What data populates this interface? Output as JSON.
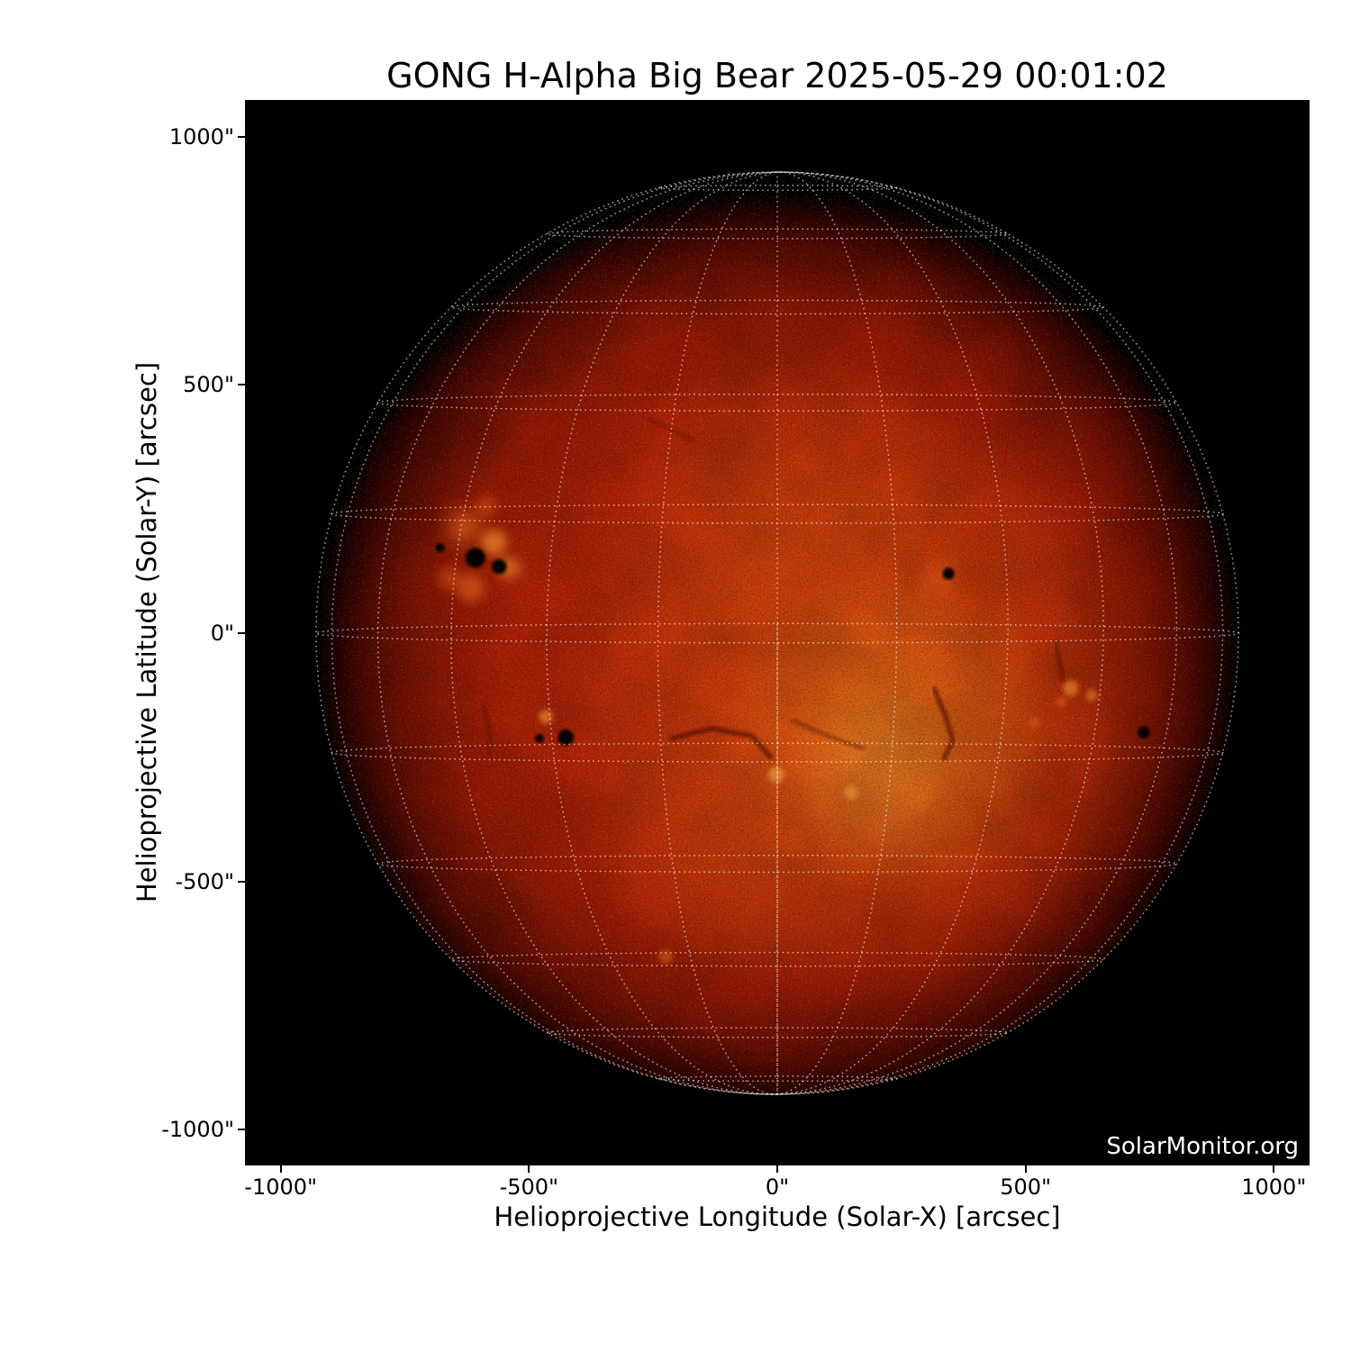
{
  "title": "GONG H-Alpha Big Bear 2025-05-29 00:01:02",
  "watermark": "SolarMonitor.org",
  "chart_data": {
    "type": "heatmap",
    "title": "GONG H-Alpha Big Bear 2025-05-29 00:01:02",
    "xlabel": "Helioprojective Longitude (Solar-X) [arcsec]",
    "ylabel": "Helioprojective Latitude (Solar-Y) [arcsec]",
    "xlim": [
      -1072,
      1072
    ],
    "ylim": [
      -1072,
      1074
    ],
    "background": "#000000",
    "xticks": {
      "values": [
        -1000,
        -500,
        0,
        500,
        1000
      ],
      "labels": [
        "-1000\"",
        "-500\"",
        "0\"",
        "500\"",
        "1000\""
      ]
    },
    "yticks": {
      "values": [
        1000,
        500,
        0,
        -500,
        -1000
      ],
      "labels": [
        "1000\"",
        "500\"",
        "0\"",
        "-500\"",
        "-1000\""
      ]
    },
    "grid": {
      "type": "heliographic",
      "spacing_deg": 15,
      "b0_deg": -1.2,
      "color": "#ffffff",
      "opacity": 0.62,
      "dash": [
        1.6,
        3.9
      ]
    },
    "sun": {
      "center_arcsec": [
        0,
        0
      ],
      "radius_arcsec": 929,
      "base_gradient_stops": [
        [
          0,
          "#c02808"
        ],
        [
          0.4,
          "#b52307"
        ],
        [
          0.6,
          "#a81f06"
        ],
        [
          0.73,
          "#941805"
        ],
        [
          0.83,
          "#701003"
        ],
        [
          0.91,
          "#460702"
        ],
        [
          0.965,
          "#1d0200"
        ],
        [
          1,
          "#000000"
        ]
      ],
      "bright_regions": [
        {
          "x": 170,
          "y": -130,
          "r": 620,
          "color": "#e8650f",
          "opacity": 0.5
        },
        {
          "x": 230,
          "y": -205,
          "r": 340,
          "color": "#ef8a1e",
          "opacity": 0.5
        },
        {
          "x": 205,
          "y": -280,
          "r": 190,
          "color": "#f5a437",
          "opacity": 0.35
        },
        {
          "x": 40,
          "y": 230,
          "r": 380,
          "color": "#d24a0c",
          "opacity": 0.42
        },
        {
          "x": -80,
          "y": -420,
          "r": 300,
          "color": "#dc5210",
          "opacity": 0.3
        }
      ],
      "plages": [
        {
          "x": -631,
          "y": 214,
          "r": 32,
          "color": "#e8661a",
          "opacity": 0.7
        },
        {
          "x": -571,
          "y": 183,
          "r": 26,
          "color": "#f0922e",
          "opacity": 0.7
        },
        {
          "x": -618,
          "y": 92,
          "r": 28,
          "color": "#e8661a",
          "opacity": 0.6
        },
        {
          "x": -540,
          "y": 132,
          "r": 22,
          "color": "#f0922e",
          "opacity": 0.6
        },
        {
          "x": -587,
          "y": 256,
          "r": 20,
          "color": "#dd5512",
          "opacity": 0.55
        },
        {
          "x": -660,
          "y": 111,
          "r": 24,
          "color": "#dd5512",
          "opacity": 0.5
        },
        {
          "x": -466,
          "y": -168,
          "r": 14,
          "color": "#f0922e",
          "opacity": 0.65
        },
        {
          "x": -2,
          "y": -285,
          "r": 16,
          "color": "#f5a847",
          "opacity": 0.6
        },
        {
          "x": 149,
          "y": -321,
          "r": 14,
          "color": "#f5a847",
          "opacity": 0.5
        },
        {
          "x": 328,
          "y": 111,
          "r": 30,
          "color": "#e8661a",
          "opacity": 0.45
        },
        {
          "x": 591,
          "y": -111,
          "r": 16,
          "color": "#f0922e",
          "opacity": 0.6
        },
        {
          "x": 633,
          "y": -125,
          "r": 12,
          "color": "#f0922e",
          "opacity": 0.5
        },
        {
          "x": 573,
          "y": -138,
          "r": 11,
          "color": "#e8661a",
          "opacity": 0.5
        },
        {
          "x": -225,
          "y": -651,
          "r": 14,
          "color": "#e8661a",
          "opacity": 0.5
        },
        {
          "x": 519,
          "y": -180,
          "r": 10,
          "color": "#e8661a",
          "opacity": 0.45
        }
      ],
      "sunspots": [
        {
          "x": -608,
          "y": 152,
          "r": 20
        },
        {
          "x": -560,
          "y": 134,
          "r": 15
        },
        {
          "x": -679,
          "y": 172,
          "r": 9
        },
        {
          "x": 345,
          "y": 120,
          "r": 12
        },
        {
          "x": -479,
          "y": -212,
          "r": 9
        },
        {
          "x": -426,
          "y": -210,
          "r": 16
        },
        {
          "x": 738,
          "y": -200,
          "r": 12
        }
      ],
      "filaments": [
        {
          "width": 5,
          "opacity": 0.75,
          "points": [
            [
              -214,
              -212
            ],
            [
              -132,
              -192
            ],
            [
              -51,
              -207
            ],
            [
              -13,
              -250
            ]
          ]
        },
        {
          "width": 5,
          "opacity": 0.7,
          "points": [
            [
              316,
              -112
            ],
            [
              339,
              -167
            ],
            [
              354,
              -216
            ],
            [
              336,
              -252
            ]
          ]
        },
        {
          "width": 4,
          "opacity": 0.6,
          "points": [
            [
              560,
              -16
            ],
            [
              568,
              -58
            ],
            [
              577,
              -96
            ]
          ]
        },
        {
          "width": 4,
          "opacity": 0.5,
          "points": [
            [
              31,
              -176
            ],
            [
              107,
              -209
            ],
            [
              172,
              -232
            ]
          ]
        },
        {
          "width": 4,
          "opacity": 0.5,
          "points": [
            [
              -593,
              -145
            ],
            [
              -580,
              -198
            ],
            [
              -575,
              -245
            ]
          ]
        },
        {
          "width": 3.5,
          "opacity": 0.45,
          "points": [
            [
              -256,
              430
            ],
            [
              -209,
              408
            ],
            [
              -169,
              388
            ]
          ]
        }
      ],
      "spot_color": "#060100",
      "filament_color": "#4f0a02"
    }
  }
}
